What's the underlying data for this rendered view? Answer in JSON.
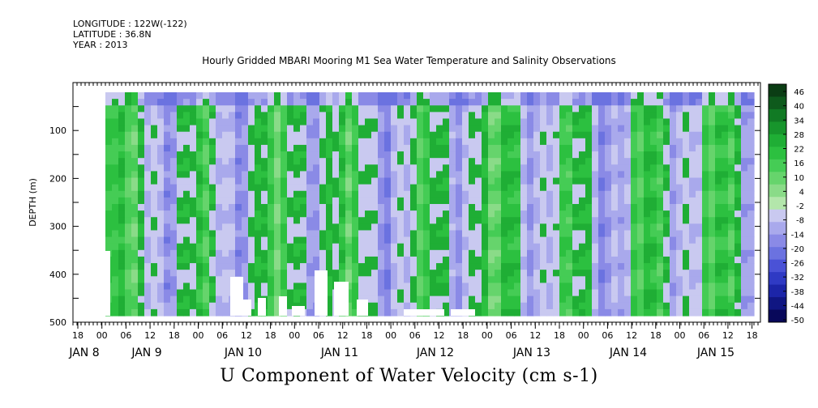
{
  "header": {
    "longitude": "LONGITUDE : 122W(-122)",
    "latitude": "LATITUDE : 36.8N",
    "year": "YEAR : 2013"
  },
  "chart_data": {
    "type": "heatmap",
    "title": "Hourly Gridded MBARI Mooring M1 Sea Water Temperature and Salinity Observations",
    "bottom_title": "U Component of Water Velocity (cm s-1)",
    "ylabel": "DEPTH (m)",
    "ylim": [
      500,
      0
    ],
    "yticks": [
      100,
      200,
      300,
      400,
      500
    ],
    "x_hour_ticks": [
      "18",
      "00",
      "06",
      "12",
      "18",
      "00",
      "06",
      "12",
      "18",
      "00",
      "06",
      "12",
      "18",
      "00",
      "06",
      "12",
      "18",
      "00",
      "06",
      "12",
      "18",
      "00",
      "06",
      "12",
      "18",
      "00",
      "06",
      "12",
      "18",
      "00",
      "06",
      "12",
      "18",
      "00",
      "06",
      "12",
      "18",
      "00",
      "06",
      "12",
      "18",
      "00",
      "06",
      "12",
      "18"
    ],
    "x_day_labels": [
      "JAN 8",
      "JAN 9",
      "JAN 10",
      "JAN 11",
      "JAN 12",
      "JAN 13",
      "JAN 14",
      "JAN 15"
    ],
    "colorbar_labels": [
      "46",
      "40",
      "34",
      "28",
      "22",
      "16",
      "10",
      "4",
      "-2",
      "-8",
      "-14",
      "-20",
      "-26",
      "-32",
      "-38",
      "-44",
      "-50"
    ],
    "colorbar_colors": [
      "#0b3d14",
      "#0e5a1c",
      "#117a24",
      "#17952c",
      "#1fae35",
      "#2cc040",
      "#45cc55",
      "#66d46c",
      "#8adb88",
      "#b3e6ab",
      "#c9c9f0",
      "#a9a9ec",
      "#8a8ae6",
      "#6b72e0",
      "#4a52d6",
      "#2f3ac4",
      "#1c25a8",
      "#101682",
      "#08085a"
    ],
    "series": [
      {
        "depth_bands": [
          {
            "name": "near-surface (20-60 m)",
            "pattern": "mostly blue, negative values"
          },
          {
            "name": "mid-depth (60-480 m)",
            "pattern": "alternating vertical bands of green (positive) and blue (negative)"
          }
        ]
      }
    ]
  }
}
